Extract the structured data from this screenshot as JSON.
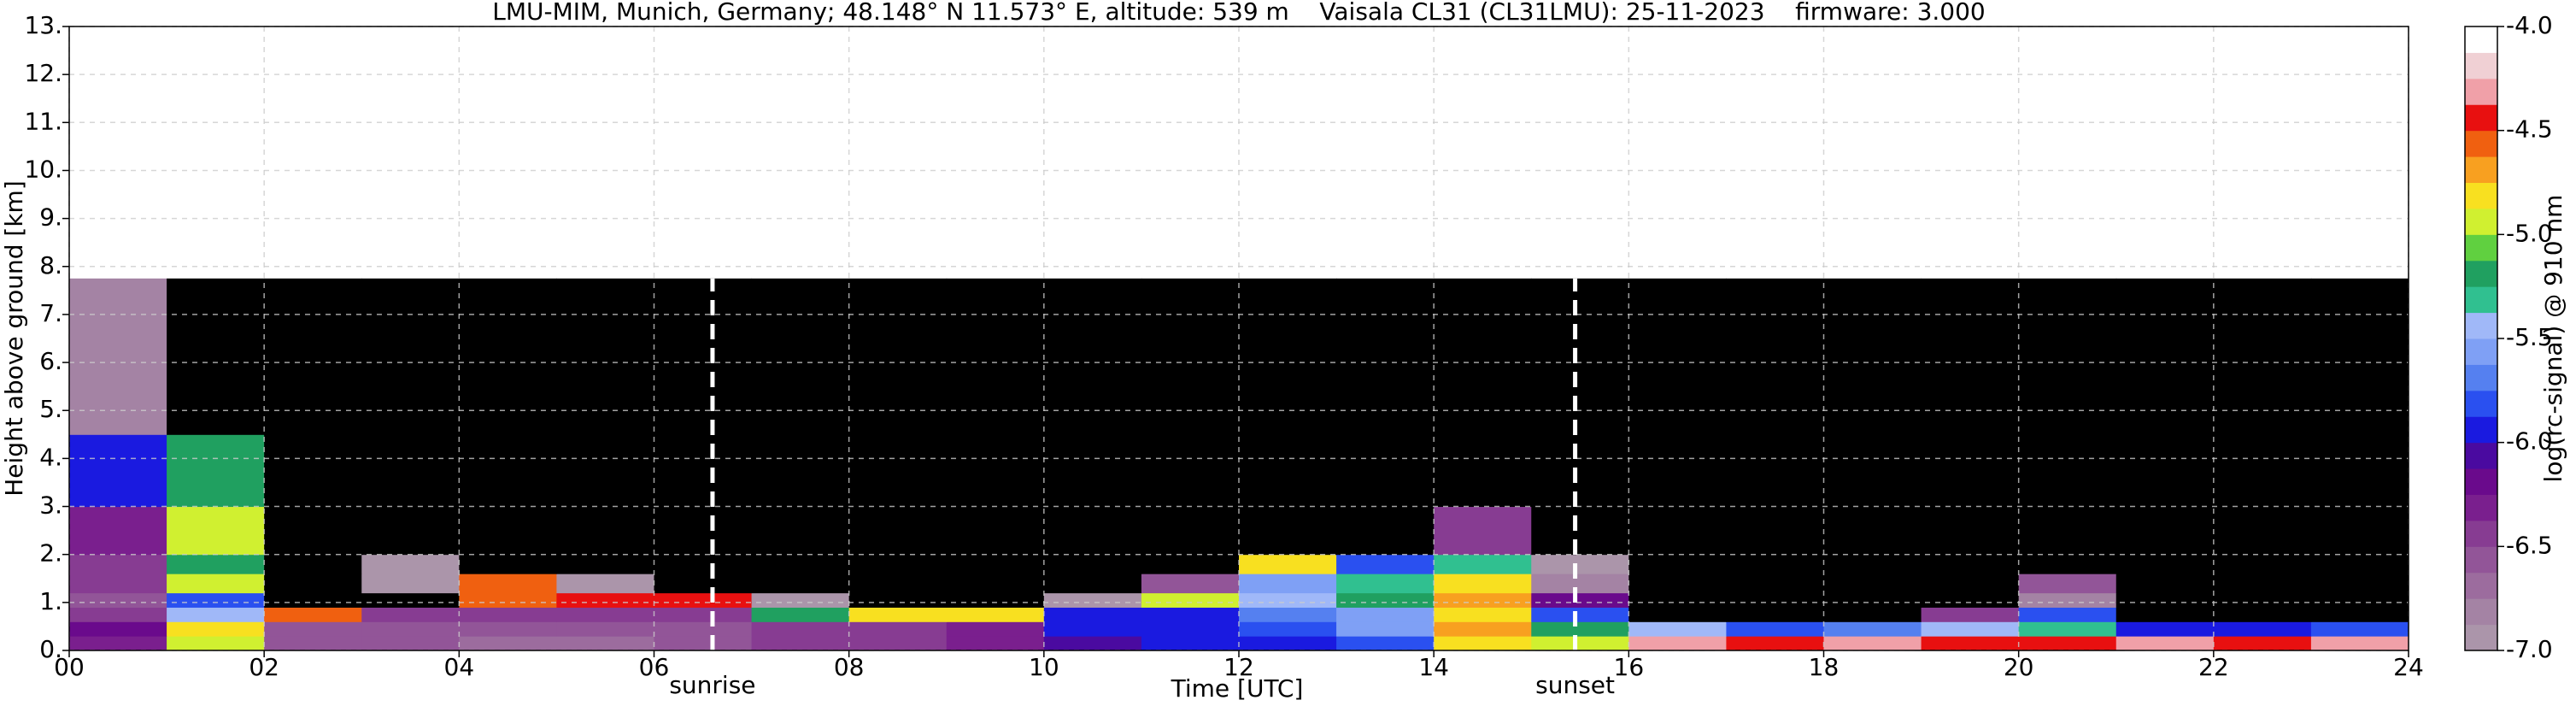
{
  "chart_data": {
    "type": "heatmap",
    "title": "LMU-MIM, Munich, Germany; 48.148° N 11.573° E, altitude: 539 m    Vaisala CL31 (CL31LMU): 25-11-2023    firmware: 3.000",
    "x_label": "Time [UTC]",
    "y_label": "Height above ground [km]",
    "colorbar_label": "log(rc-signal) @ 910 nm",
    "xlim": [
      0,
      24
    ],
    "xticks": [
      {
        "value": 0,
        "label": "00"
      },
      {
        "value": 2,
        "label": "02"
      },
      {
        "value": 4,
        "label": "04"
      },
      {
        "value": 6,
        "label": "06"
      },
      {
        "value": 8,
        "label": "08"
      },
      10,
      12,
      14,
      16,
      18,
      20,
      22,
      24
    ],
    "ylim": [
      0,
      13
    ],
    "yticks": [
      {
        "value": 0,
        "label": "0."
      },
      {
        "value": 1,
        "label": "1."
      },
      {
        "value": 2,
        "label": "2."
      },
      {
        "value": 3,
        "label": "3."
      },
      {
        "value": 4,
        "label": "4."
      },
      {
        "value": 5,
        "label": "5."
      },
      {
        "value": 6,
        "label": "6."
      },
      {
        "value": 7,
        "label": "7."
      },
      {
        "value": 8,
        "label": "8."
      },
      {
        "value": 9,
        "label": "9."
      },
      {
        "value": 10,
        "label": "10."
      },
      {
        "value": 11,
        "label": "11."
      },
      {
        "value": 12,
        "label": "12."
      },
      {
        "value": 13,
        "label": "13."
      }
    ],
    "clim": [
      -7,
      -4
    ],
    "cticks": [
      {
        "value": -7,
        "label": "-7.0"
      },
      {
        "value": -6.5,
        "label": "-6.5"
      },
      {
        "value": -6,
        "label": "-6.0"
      },
      {
        "value": -5.5,
        "label": "-5.5"
      },
      {
        "value": -5,
        "label": "-5.0"
      },
      {
        "value": -4.5,
        "label": "-4.5"
      },
      {
        "value": -4,
        "label": "-4.0"
      }
    ],
    "colors": [
      "#ab95aa",
      "#a483a4",
      "#9c6c9e",
      "#925598",
      "#873c92",
      "#7a1f8e",
      "#6a0a8c",
      "#4a0aa0",
      "#1a1ae0",
      "#2a50f0",
      "#5580f0",
      "#7fa0f5",
      "#a0b8f8",
      "#30c090",
      "#20a060",
      "#60d040",
      "#d0f030",
      "#f8e020",
      "#f8a020",
      "#f06010",
      "#e81010",
      "#f0a0a8",
      "#f0d0d4",
      "#ffffff"
    ],
    "under_color": "#000000",
    "grid": true,
    "annotations": [
      {
        "text": "sunrise",
        "x": 6.6
      },
      {
        "text": "sunset",
        "x": 15.45
      }
    ],
    "heatmap": {
      "x_edges": [
        0,
        1,
        2,
        3,
        4,
        5,
        6,
        7,
        8,
        9,
        10,
        11,
        12,
        13,
        14,
        15,
        16,
        17,
        18,
        19,
        20,
        21,
        22,
        23,
        24
      ],
      "y_edges": [
        0,
        0.3,
        0.6,
        0.9,
        1.2,
        1.6,
        2.0,
        3.0,
        4.5,
        6.0,
        7.75
      ],
      "values": [
        [
          -6.3,
          -5.0,
          -6.6,
          -6.6,
          -6.7,
          -6.7,
          -6.6,
          -6.5,
          -6.4,
          -6.3,
          -6.1,
          -6.0,
          -5.9,
          -5.8,
          -4.8,
          -4.9,
          -4.3,
          -4.4,
          -4.3,
          -4.4,
          -4.5,
          -4.3,
          -4.4,
          -4.3
        ],
        [
          -6.2,
          -4.8,
          -6.6,
          -6.6,
          -6.6,
          -6.6,
          -6.6,
          -6.5,
          -6.4,
          -6.3,
          -6.0,
          -6.0,
          -5.8,
          -5.6,
          -4.7,
          -5.2,
          -5.5,
          -5.8,
          -5.7,
          -5.5,
          -5.3,
          -5.9,
          -6.0,
          -5.8
        ],
        [
          -6.4,
          -5.5,
          -4.6,
          -6.5,
          -6.5,
          -6.5,
          -6.5,
          -5.2,
          -4.8,
          -4.8,
          -5.9,
          -5.9,
          -5.7,
          -5.6,
          -4.8,
          -5.8,
          -7.3,
          -7.3,
          -7.3,
          -6.5,
          -5.8,
          -7.3,
          -7.3,
          -7.3
        ],
        [
          -6.6,
          -5.8,
          -7.2,
          -7.2,
          -4.6,
          -4.5,
          -4.4,
          -7.0,
          -7.2,
          -7.2,
          -7.0,
          -5.0,
          -5.5,
          -5.2,
          -4.7,
          -6.2,
          -7.3,
          -7.3,
          -7.3,
          -7.2,
          -6.8,
          -7.3,
          -7.3,
          -7.3
        ],
        [
          -6.5,
          -5.0,
          -7.2,
          -7.0,
          -4.6,
          -7.0,
          -7.1,
          -7.2,
          -7.2,
          -7.3,
          -7.3,
          -6.6,
          -5.6,
          -5.3,
          -4.8,
          -6.8,
          -7.3,
          -7.3,
          -7.3,
          -7.1,
          -6.6,
          -7.3,
          -7.3,
          -7.3
        ],
        [
          -6.4,
          -5.2,
          -7.2,
          -6.9,
          -7.2,
          -7.2,
          -7.2,
          -7.2,
          -7.2,
          -7.3,
          -7.3,
          -7.2,
          -4.8,
          -5.8,
          -5.3,
          -7.0,
          -7.3,
          -7.3,
          -7.3,
          -7.3,
          -7.3,
          -7.3,
          -7.3,
          -7.3
        ],
        [
          -6.3,
          -4.9,
          -7.2,
          -7.2,
          -7.2,
          -7.2,
          -7.2,
          -7.2,
          -7.2,
          -7.2,
          -7.2,
          -7.2,
          -7.2,
          -7.2,
          -6.5,
          -7.2,
          -7.3,
          -7.3,
          -7.3,
          -7.3,
          -7.3,
          -7.3,
          -7.3,
          -7.3
        ],
        [
          -6.0,
          -5.2,
          -7.1,
          -7.1,
          -7.1,
          -7.1,
          -7.1,
          -7.1,
          -7.1,
          -7.1,
          -7.1,
          -7.1,
          -7.1,
          -7.1,
          -7.1,
          -7.1,
          -7.2,
          -7.2,
          -7.2,
          -7.2,
          -7.2,
          -7.2,
          -7.2,
          -7.2
        ],
        [
          -6.8,
          -7.1,
          -7.1,
          -7.1,
          -7.1,
          -7.1,
          -7.1,
          -7.1,
          -7.05,
          -7.05,
          -7.05,
          -7.05,
          -7.05,
          -7.05,
          -7.05,
          -7.1,
          -7.2,
          -7.2,
          -7.2,
          -7.2,
          -7.2,
          -7.2,
          -7.2,
          -7.2
        ],
        [
          -6.8,
          -7.05,
          -7.05,
          -7.05,
          -7.05,
          -7.05,
          -7.05,
          -7.05,
          -7.05,
          -7.05,
          -7.05,
          -7.05,
          -7.05,
          -7.05,
          -7.05,
          -7.1,
          -7.1,
          -7.1,
          -7.1,
          -7.1,
          -7.1,
          -7.1,
          -7.1,
          -7.1
        ]
      ]
    }
  }
}
